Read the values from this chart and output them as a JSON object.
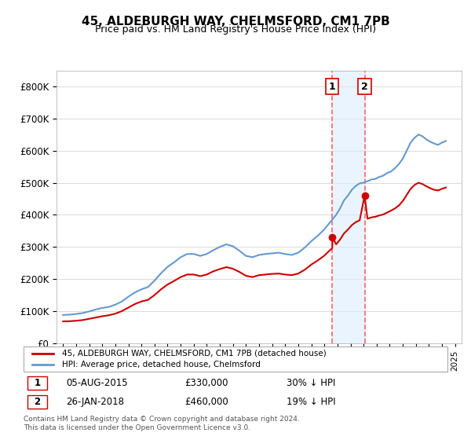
{
  "title": "45, ALDEBURGH WAY, CHELMSFORD, CM1 7PB",
  "subtitle": "Price paid vs. HM Land Registry's House Price Index (HPI)",
  "legend_label_red": "45, ALDEBURGH WAY, CHELMSFORD, CM1 7PB (detached house)",
  "legend_label_blue": "HPI: Average price, detached house, Chelmsford",
  "transaction1_date": "05-AUG-2015",
  "transaction1_price": 330000,
  "transaction1_label": "30% ↓ HPI",
  "transaction2_date": "26-JAN-2018",
  "transaction2_price": 460000,
  "transaction2_label": "19% ↓ HPI",
  "footer": "Contains HM Land Registry data © Crown copyright and database right 2024.\nThis data is licensed under the Open Government Licence v3.0.",
  "ylim": [
    0,
    850000
  ],
  "color_red": "#cc0000",
  "color_blue": "#6699cc",
  "color_shaded": "#ddeeff",
  "color_vline": "#ff6666"
}
